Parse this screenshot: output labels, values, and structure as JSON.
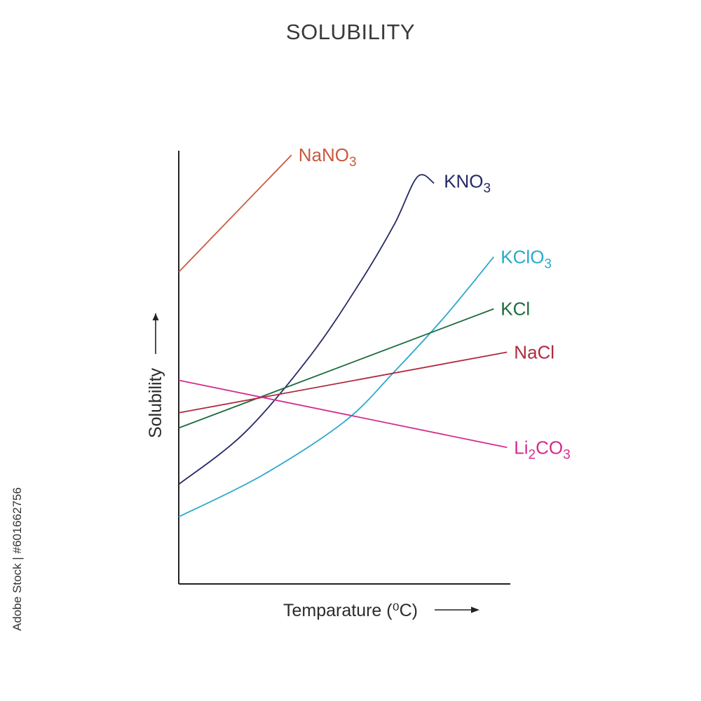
{
  "title": "SOLUBILITY",
  "chart_data": {
    "type": "line",
    "title": "SOLUBILITY",
    "xlabel": "Temparature (⁰C)",
    "ylabel": "Solubility",
    "xlim": [
      0,
      100
    ],
    "ylim": [
      0,
      100
    ],
    "grid": false,
    "legend": "inline labels at line ends",
    "series": [
      {
        "name": "NaNO3",
        "label_main": "NaNO",
        "label_sub": "3",
        "color": "#c85a3e",
        "x": [
          0,
          34
        ],
        "y": [
          72,
          99
        ]
      },
      {
        "name": "KNO3",
        "label_main": "KNO",
        "label_sub": "3",
        "color": "#262a66",
        "x": [
          0,
          20,
          40,
          55,
          65,
          72,
          77
        ],
        "y": [
          23,
          35,
          53,
          70,
          83,
          94,
          92.5
        ]
      },
      {
        "name": "KClO3",
        "label_main": "KClO",
        "label_sub": "3",
        "color": "#2aa9cc",
        "x": [
          0,
          25,
          50,
          65,
          80,
          95
        ],
        "y": [
          15.5,
          25,
          37.5,
          49,
          61.5,
          75.5
        ]
      },
      {
        "name": "KCl",
        "label_main": "KCl",
        "label_sub": "",
        "color": "#1d6b3e",
        "x": [
          0,
          95
        ],
        "y": [
          36,
          63.5
        ]
      },
      {
        "name": "NaCl",
        "label_main": "NaCl",
        "label_sub": "",
        "color": "#b02a3e",
        "x": [
          0,
          99
        ],
        "y": [
          39.5,
          53.5
        ]
      },
      {
        "name": "Li2CO3",
        "label_main": "Li",
        "label_mid_sub": "2",
        "label_main2": "CO",
        "label_sub": "3",
        "color": "#d42c8c",
        "x": [
          0,
          99
        ],
        "y": [
          47,
          31.5
        ]
      }
    ]
  },
  "credit": "Adobe Stock | #601662756"
}
